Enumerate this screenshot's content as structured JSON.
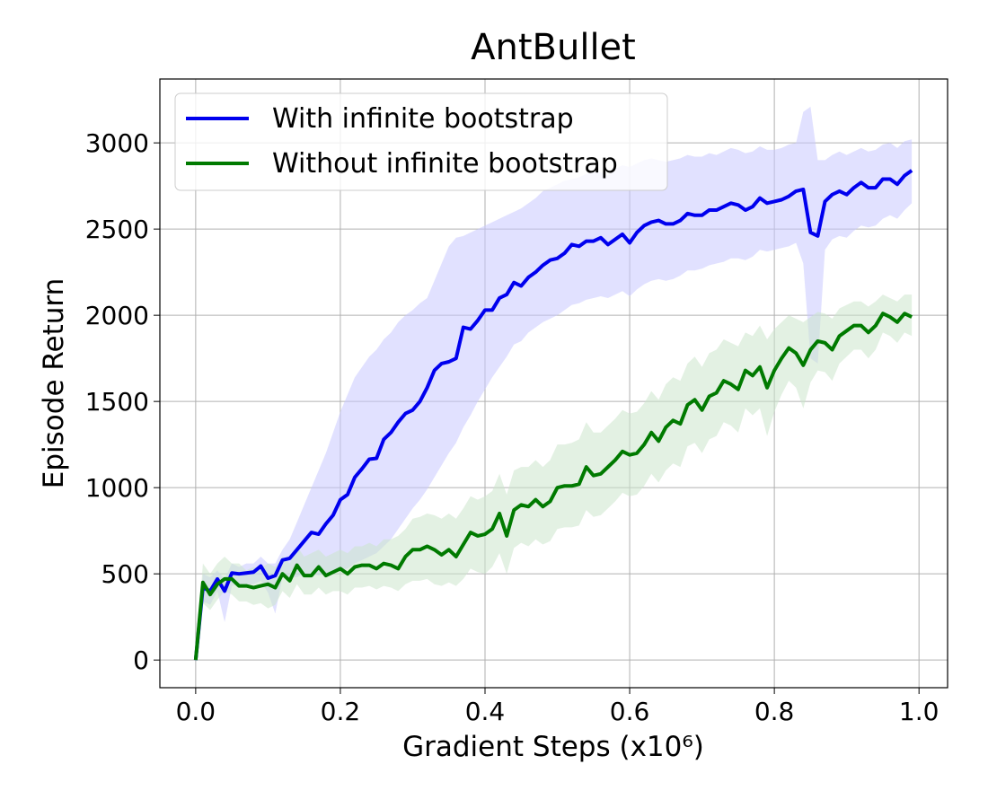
{
  "chart_data": {
    "type": "line",
    "title": "AntBullet",
    "xlabel": "Gradient Steps (x10⁶)",
    "ylabel": "Episode Return",
    "xlim": [
      -0.0495,
      1.0395
    ],
    "ylim": [
      -160.5,
      3370.5
    ],
    "xticks": [
      {
        "value": 0,
        "label": "0.0"
      },
      0.2,
      0.4,
      0.6,
      0.8,
      {
        "value": 1,
        "label": "1.0"
      }
    ],
    "yticks": [
      0,
      500,
      1000,
      1500,
      2000,
      2500,
      3000
    ],
    "grid": true,
    "legend": "upper left",
    "x": [
      0,
      0.01,
      0.02,
      0.03,
      0.04,
      0.05,
      0.06,
      0.07,
      0.08,
      0.09,
      0.1,
      0.11,
      0.12,
      0.13,
      0.14,
      0.15,
      0.16,
      0.17,
      0.18,
      0.19,
      0.2,
      0.21,
      0.22,
      0.23,
      0.24,
      0.25,
      0.26,
      0.27,
      0.28,
      0.29,
      0.3,
      0.31,
      0.32,
      0.33,
      0.34,
      0.35,
      0.36,
      0.37,
      0.38,
      0.39,
      0.4,
      0.41,
      0.42,
      0.43,
      0.44,
      0.45,
      0.46,
      0.47,
      0.48,
      0.49,
      0.5,
      0.51,
      0.52,
      0.53,
      0.54,
      0.55,
      0.56,
      0.57,
      0.58,
      0.59,
      0.6,
      0.61,
      0.62,
      0.63,
      0.64,
      0.65,
      0.66,
      0.67,
      0.68,
      0.69,
      0.7,
      0.71,
      0.72,
      0.73,
      0.74,
      0.75,
      0.76,
      0.77,
      0.78,
      0.79,
      0.8,
      0.81,
      0.82,
      0.83,
      0.84,
      0.85,
      0.86,
      0.87,
      0.88,
      0.89,
      0.9,
      0.91,
      0.92,
      0.93,
      0.94,
      0.95,
      0.96,
      0.97,
      0.98,
      0.99
    ],
    "series": [
      {
        "name": "With infinite bootstrap",
        "color": "#0000ee",
        "band_color": "#c8c8ff",
        "values": [
          0,
          420,
          400,
          470,
          400,
          505,
          500,
          505,
          510,
          545,
          475,
          490,
          580,
          590,
          640,
          690,
          740,
          730,
          790,
          840,
          930,
          960,
          1060,
          1110,
          1165,
          1170,
          1280,
          1320,
          1380,
          1430,
          1450,
          1500,
          1580,
          1680,
          1720,
          1730,
          1750,
          1930,
          1920,
          1970,
          2030,
          2030,
          2100,
          2120,
          2190,
          2170,
          2220,
          2250,
          2290,
          2320,
          2330,
          2360,
          2410,
          2400,
          2430,
          2430,
          2450,
          2410,
          2440,
          2470,
          2420,
          2480,
          2520,
          2540,
          2550,
          2530,
          2530,
          2550,
          2590,
          2580,
          2580,
          2610,
          2610,
          2630,
          2650,
          2640,
          2610,
          2630,
          2680,
          2650,
          2660,
          2670,
          2690,
          2720,
          2730,
          2480,
          2460,
          2660,
          2700,
          2720,
          2700,
          2740,
          2770,
          2740,
          2740,
          2790,
          2790,
          2760,
          2810,
          2840
        ],
        "upper": [
          0,
          500,
          480,
          520,
          470,
          560,
          540,
          560,
          560,
          600,
          560,
          560,
          640,
          700,
          800,
          900,
          1000,
          1100,
          1200,
          1320,
          1440,
          1540,
          1640,
          1700,
          1760,
          1800,
          1860,
          1900,
          1960,
          2000,
          2030,
          2070,
          2100,
          2200,
          2300,
          2400,
          2450,
          2460,
          2480,
          2500,
          2520,
          2540,
          2560,
          2580,
          2600,
          2620,
          2650,
          2680,
          2720,
          2740,
          2760,
          2780,
          2790,
          2800,
          2820,
          2830,
          2830,
          2810,
          2850,
          2870,
          2860,
          2880,
          2900,
          2910,
          2900,
          2890,
          2900,
          2910,
          2930,
          2920,
          2920,
          2940,
          2930,
          2950,
          2970,
          2960,
          2940,
          2950,
          2980,
          2960,
          2960,
          2970,
          2990,
          3000,
          3180,
          3210,
          2900,
          2900,
          2930,
          2950,
          2930,
          2950,
          2970,
          2950,
          2960,
          2990,
          3000,
          2970,
          3010,
          3020
        ],
        "lower": [
          0,
          340,
          320,
          400,
          220,
          430,
          440,
          440,
          440,
          460,
          390,
          270,
          480,
          480,
          480,
          500,
          500,
          490,
          500,
          510,
          520,
          530,
          560,
          580,
          600,
          620,
          660,
          700,
          760,
          820,
          880,
          930,
          990,
          1060,
          1130,
          1200,
          1260,
          1350,
          1420,
          1500,
          1570,
          1640,
          1700,
          1760,
          1830,
          1850,
          1900,
          1930,
          1960,
          1980,
          2000,
          2030,
          2060,
          2070,
          2090,
          2100,
          2110,
          2100,
          2120,
          2140,
          2110,
          2150,
          2180,
          2200,
          2210,
          2200,
          2210,
          2230,
          2260,
          2260,
          2270,
          2290,
          2300,
          2310,
          2330,
          2330,
          2320,
          2340,
          2380,
          2370,
          2380,
          2390,
          2400,
          2420,
          2300,
          1750,
          1720,
          2380,
          2440,
          2460,
          2450,
          2490,
          2520,
          2510,
          2520,
          2560,
          2580,
          2560,
          2610,
          2650
        ]
      },
      {
        "name": "Without infinite bootstrap",
        "color": "#007a00",
        "band_color": "#cce6cc",
        "values": [
          0,
          450,
          380,
          440,
          470,
          470,
          430,
          430,
          420,
          430,
          440,
          420,
          500,
          460,
          550,
          490,
          490,
          540,
          490,
          510,
          530,
          500,
          540,
          550,
          550,
          530,
          560,
          550,
          530,
          600,
          640,
          640,
          660,
          640,
          610,
          640,
          600,
          670,
          740,
          720,
          730,
          760,
          850,
          720,
          870,
          900,
          890,
          930,
          890,
          920,
          1000,
          1010,
          1010,
          1020,
          1120,
          1070,
          1080,
          1120,
          1160,
          1210,
          1190,
          1200,
          1250,
          1320,
          1270,
          1350,
          1390,
          1370,
          1480,
          1510,
          1450,
          1530,
          1550,
          1620,
          1600,
          1570,
          1680,
          1650,
          1700,
          1580,
          1680,
          1750,
          1810,
          1780,
          1710,
          1800,
          1850,
          1840,
          1800,
          1880,
          1910,
          1940,
          1940,
          1900,
          1940,
          2010,
          1990,
          1960,
          2010,
          1990
        ],
        "upper": [
          0,
          560,
          500,
          560,
          600,
          560,
          560,
          520,
          540,
          530,
          560,
          540,
          600,
          560,
          660,
          600,
          620,
          640,
          600,
          620,
          640,
          620,
          660,
          660,
          680,
          660,
          700,
          700,
          720,
          760,
          820,
          830,
          850,
          840,
          820,
          850,
          820,
          880,
          950,
          930,
          950,
          980,
          1080,
          960,
          1100,
          1120,
          1120,
          1160,
          1120,
          1160,
          1250,
          1250,
          1260,
          1280,
          1380,
          1320,
          1320,
          1360,
          1400,
          1450,
          1430,
          1440,
          1490,
          1560,
          1510,
          1600,
          1640,
          1620,
          1720,
          1760,
          1700,
          1780,
          1800,
          1860,
          1840,
          1820,
          1900,
          1880,
          1940,
          1860,
          1920,
          1960,
          2000,
          1980,
          1960,
          1990,
          2020,
          2010,
          1980,
          2040,
          2060,
          2080,
          2080,
          2050,
          2080,
          2120,
          2100,
          2080,
          2120,
          2120
        ],
        "lower": [
          0,
          330,
          290,
          350,
          400,
          380,
          340,
          340,
          320,
          330,
          300,
          320,
          400,
          360,
          440,
          380,
          380,
          420,
          380,
          400,
          400,
          380,
          420,
          420,
          430,
          410,
          430,
          420,
          400,
          440,
          460,
          460,
          470,
          440,
          430,
          450,
          430,
          470,
          530,
          510,
          500,
          540,
          620,
          500,
          650,
          680,
          660,
          700,
          670,
          690,
          760,
          770,
          770,
          780,
          870,
          830,
          840,
          880,
          920,
          970,
          950,
          960,
          1010,
          1080,
          1030,
          1100,
          1140,
          1120,
          1240,
          1260,
          1200,
          1280,
          1300,
          1380,
          1360,
          1320,
          1460,
          1420,
          1460,
          1300,
          1440,
          1540,
          1620,
          1580,
          1460,
          1610,
          1680,
          1670,
          1620,
          1720,
          1760,
          1800,
          1800,
          1750,
          1800,
          1900,
          1880,
          1840,
          1900,
          1880
        ]
      }
    ]
  }
}
